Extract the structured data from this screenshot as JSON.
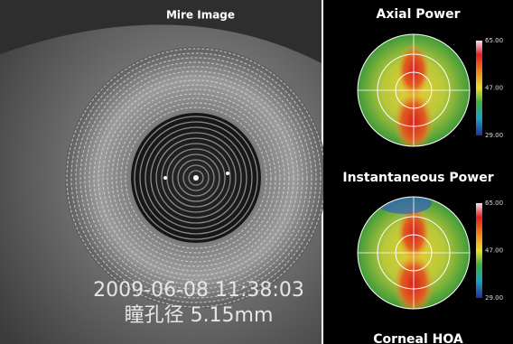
{
  "left_panel": {
    "title": "Mire Image",
    "timestamp": "2009-06-08 11:38:03",
    "pupil_diameter": "瞳孔径 5.15mm"
  },
  "maps": [
    {
      "title": "Axial Power",
      "scale": [
        "65.00",
        "47.00",
        "29.00"
      ]
    },
    {
      "title": "Instantaneous Power",
      "scale": [
        "65.00",
        "47.00",
        "29.00"
      ]
    }
  ],
  "next_map_title": "Corneal HOA"
}
